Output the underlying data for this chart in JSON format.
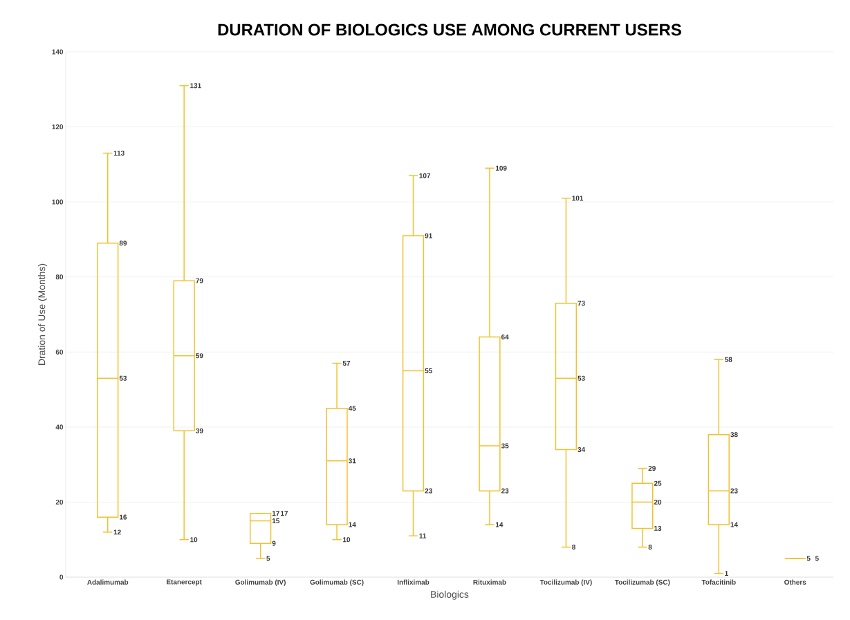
{
  "chart_data": {
    "type": "box",
    "title": "DURATION OF BIOLOGICS USE AMONG CURRENT USERS",
    "xlabel": "Biologics",
    "ylabel": "Dration of Use (Months)",
    "categories": [
      "Adalimumab",
      "Etanercept",
      "Golimumab (IV)",
      "Golimumab (SC)",
      "Infliximab",
      "Rituximab",
      "Tocilizumab (IV)",
      "Tocilizumab (SC)",
      "Tofacitinib",
      "Others"
    ],
    "boxes": [
      {
        "low": 12,
        "q1": 16,
        "median": 53,
        "q3": 89,
        "high": 113
      },
      {
        "low": 10,
        "q1": 39,
        "median": 59,
        "q3": 79,
        "high": 131
      },
      {
        "low": 5,
        "q1": 9,
        "median": 15,
        "q3": 17,
        "high": 17
      },
      {
        "low": 10,
        "q1": 14,
        "median": 31,
        "q3": 45,
        "high": 57
      },
      {
        "low": 11,
        "q1": 23,
        "median": 55,
        "q3": 91,
        "high": 107
      },
      {
        "low": 14,
        "q1": 23,
        "median": 35,
        "q3": 64,
        "high": 109
      },
      {
        "low": 8,
        "q1": 34,
        "median": 53,
        "q3": 73,
        "high": 101
      },
      {
        "low": 8,
        "q1": 13,
        "median": 20,
        "q3": 25,
        "high": 29
      },
      {
        "low": 1,
        "q1": 14,
        "median": 23,
        "q3": 38,
        "high": 58
      },
      {
        "low": 5,
        "q1": 5,
        "median": 5,
        "q3": 5,
        "high": 5
      }
    ],
    "annotations": [
      {
        "text": "12",
        "x": "Adalimumab",
        "y": 12
      },
      {
        "text": "16",
        "x": "Adalimumab",
        "y": 16
      },
      {
        "text": "53",
        "x": "Adalimumab",
        "y": 53
      },
      {
        "text": "89",
        "x": "Adalimumab",
        "y": 89
      },
      {
        "text": "113",
        "x": "Adalimumab",
        "y": 113
      },
      {
        "text": "10",
        "x": "Etanercept",
        "y": 10
      },
      {
        "text": "39",
        "x": "Etanercept",
        "y": 39
      },
      {
        "text": "59",
        "x": "Etanercept",
        "y": 59
      },
      {
        "text": "79",
        "x": "Etanercept",
        "y": 79
      },
      {
        "text": "131",
        "x": "Etanercept",
        "y": 131
      },
      {
        "text": "5",
        "x": "Golimumab (IV)",
        "y": 5
      },
      {
        "text": "9",
        "x": "Golimumab (IV)",
        "y": 9
      },
      {
        "text": "15",
        "x": "Golimumab (IV)",
        "y": 15
      },
      {
        "text": "17",
        "x": "Golimumab (IV)",
        "y": 17
      },
      {
        "text": "17",
        "x": "Golimumab (IV)",
        "y": 17
      },
      {
        "text": "10",
        "x": "Golimumab (SC)",
        "y": 10
      },
      {
        "text": "14",
        "x": "Golimumab (SC)",
        "y": 14
      },
      {
        "text": "31",
        "x": "Golimumab (SC)",
        "y": 31
      },
      {
        "text": "45",
        "x": "Golimumab (SC)",
        "y": 45
      },
      {
        "text": "57",
        "x": "Golimumab (SC)",
        "y": 57
      },
      {
        "text": "11",
        "x": "Infliximab",
        "y": 11
      },
      {
        "text": "23",
        "x": "Infliximab",
        "y": 23
      },
      {
        "text": "55",
        "x": "Infliximab",
        "y": 55
      },
      {
        "text": "91",
        "x": "Infliximab",
        "y": 91
      },
      {
        "text": "107",
        "x": "Infliximab",
        "y": 107
      },
      {
        "text": "14",
        "x": "Rituximab",
        "y": 14
      },
      {
        "text": "23",
        "x": "Rituximab",
        "y": 23
      },
      {
        "text": "35",
        "x": "Rituximab",
        "y": 35
      },
      {
        "text": "64",
        "x": "Rituximab",
        "y": 64
      },
      {
        "text": "109",
        "x": "Rituximab",
        "y": 109
      },
      {
        "text": "8",
        "x": "Tocilizumab (IV)",
        "y": 8
      },
      {
        "text": "34",
        "x": "Tocilizumab (IV)",
        "y": 34
      },
      {
        "text": "53",
        "x": "Tocilizumab (IV)",
        "y": 53
      },
      {
        "text": "73",
        "x": "Tocilizumab (IV)",
        "y": 73
      },
      {
        "text": "101",
        "x": "Tocilizumab (IV)",
        "y": 101
      },
      {
        "text": "8",
        "x": "Tocilizumab (SC)",
        "y": 8
      },
      {
        "text": "13",
        "x": "Tocilizumab (SC)",
        "y": 13
      },
      {
        "text": "20",
        "x": "Tocilizumab (SC)",
        "y": 20
      },
      {
        "text": "25",
        "x": "Tocilizumab (SC)",
        "y": 25
      },
      {
        "text": "29",
        "x": "Tocilizumab (SC)",
        "y": 29
      },
      {
        "text": "1",
        "x": "Tofacitinib",
        "y": 1
      },
      {
        "text": "14",
        "x": "Tofacitinib",
        "y": 14
      },
      {
        "text": "23",
        "x": "Tofacitinib",
        "y": 23
      },
      {
        "text": "38",
        "x": "Tofacitinib",
        "y": 38
      },
      {
        "text": "58",
        "x": "Tofacitinib",
        "y": 58
      },
      {
        "text": "5",
        "x": "Others",
        "y": 5
      },
      {
        "text": "5",
        "x": "Others",
        "y": 5
      }
    ],
    "color": "#f2c12e",
    "ylim": [
      0,
      140
    ],
    "yticks": [
      0,
      20,
      40,
      60,
      80,
      100,
      120,
      140
    ],
    "grid": "y"
  }
}
